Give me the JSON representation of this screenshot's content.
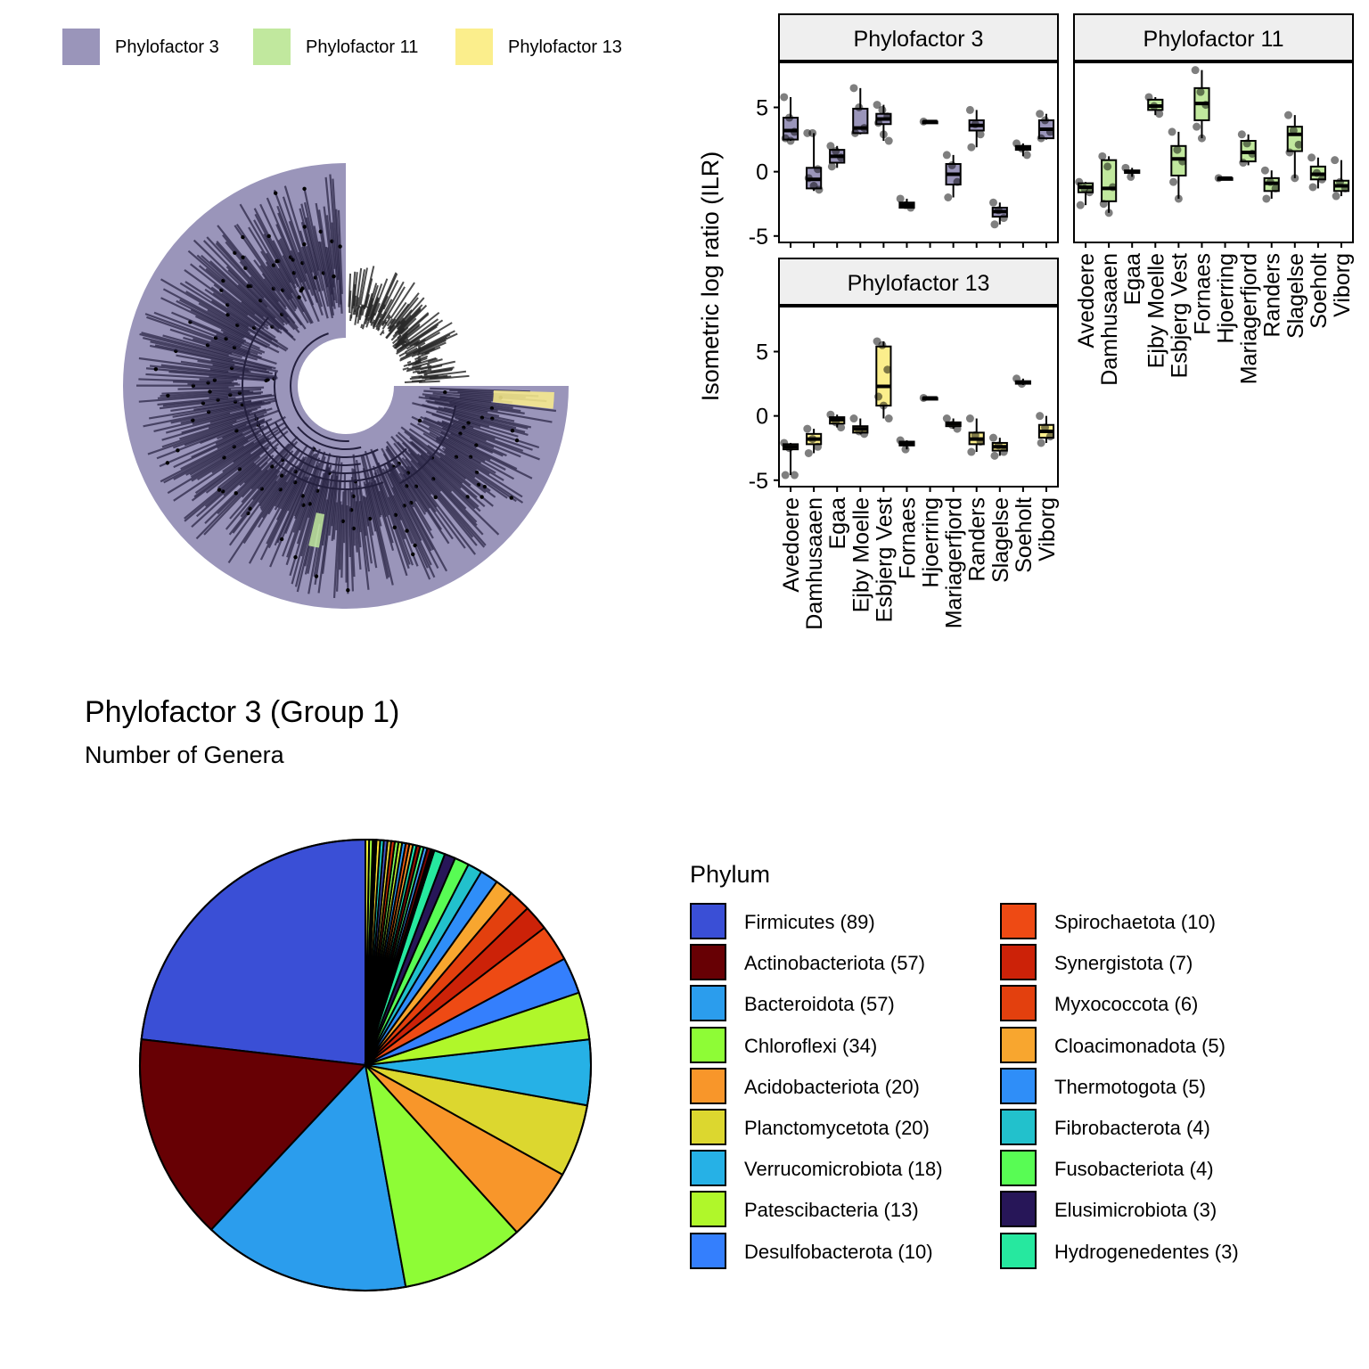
{
  "tree_legend": {
    "items": [
      {
        "label": "Phylofactor 3",
        "color": "#9a95ba"
      },
      {
        "label": "Phylofactor 11",
        "color": "#c1e89e"
      },
      {
        "label": "Phylofactor 13",
        "color": "#fbee8c"
      }
    ]
  },
  "chart_data": [
    {
      "type": "box",
      "ylabel": "Isometric log ratio (ILR)",
      "ylim": [
        -5.5,
        8.5
      ],
      "yticks": [
        -5,
        0,
        5
      ],
      "categories": [
        "Avedoere",
        "Damhusaaen",
        "Egaa",
        "Ejby Moelle",
        "Esbjerg Vest",
        "Fornaes",
        "Hjoerring",
        "Mariagerfjord",
        "Randers",
        "Slagelse",
        "Soeholt",
        "Viborg"
      ],
      "panels": [
        {
          "title": "Phylofactor 3",
          "color": "#9a95ba",
          "boxes": [
            {
              "q1": 2.5,
              "median": 3.2,
              "q3": 4.2,
              "min": 2.4,
              "max": 5.8,
              "points": [
                5.8,
                4.2,
                3.1,
                2.6,
                2.4
              ]
            },
            {
              "q1": -1.3,
              "median": -0.6,
              "q3": 0.3,
              "min": -1.5,
              "max": 3.0,
              "points": [
                3.0,
                3.0,
                0.2,
                -0.5,
                -1.1,
                -1.4
              ]
            },
            {
              "q1": 0.7,
              "median": 1.2,
              "q3": 1.7,
              "min": 0.3,
              "max": 2.0,
              "points": [
                2.0,
                1.6,
                1.1,
                0.4
              ]
            },
            {
              "q1": 3.0,
              "median": 3.4,
              "q3": 4.9,
              "min": 2.9,
              "max": 6.5,
              "points": [
                6.5,
                5.0,
                3.4,
                3.0
              ]
            },
            {
              "q1": 3.7,
              "median": 4.1,
              "q3": 4.5,
              "min": 2.4,
              "max": 5.2,
              "points": [
                5.2,
                4.8,
                4.3,
                3.8,
                2.9,
                2.4
              ]
            },
            {
              "q1": -2.8,
              "median": -2.6,
              "q3": -2.4,
              "min": -2.8,
              "max": -2.1,
              "points": [
                -2.1,
                -2.6,
                -2.8
              ]
            },
            {
              "q1": 3.9,
              "median": 3.9,
              "q3": 3.9,
              "min": 3.9,
              "max": 3.9,
              "points": [
                3.9
              ]
            },
            {
              "q1": -1.0,
              "median": -0.2,
              "q3": 0.6,
              "min": -2.0,
              "max": 1.3,
              "points": [
                1.3,
                0.5,
                -0.8,
                -2.0
              ]
            },
            {
              "q1": 3.2,
              "median": 3.6,
              "q3": 4.0,
              "min": 1.9,
              "max": 4.8,
              "points": [
                4.8,
                3.7,
                2.9,
                1.9
              ]
            },
            {
              "q1": -3.5,
              "median": -3.1,
              "q3": -2.8,
              "min": -4.1,
              "max": -2.4,
              "points": [
                -2.4,
                -3.0,
                -3.6,
                -4.1
              ]
            },
            {
              "q1": 1.7,
              "median": 1.9,
              "q3": 2.0,
              "min": 1.2,
              "max": 2.2,
              "points": [
                2.2,
                1.8,
                1.3
              ]
            },
            {
              "q1": 2.6,
              "median": 3.3,
              "q3": 4.0,
              "min": 2.5,
              "max": 4.5,
              "points": [
                4.5,
                4.0,
                3.1,
                2.6
              ]
            }
          ]
        },
        {
          "title": "Phylofactor 11",
          "color": "#c1e89e",
          "boxes": [
            {
              "q1": -1.6,
              "median": -1.2,
              "q3": -0.9,
              "min": -2.6,
              "max": -0.8,
              "points": [
                -0.8,
                -1.3,
                -1.6,
                -2.6
              ]
            },
            {
              "q1": -2.3,
              "median": -1.3,
              "q3": 0.9,
              "min": -3.2,
              "max": 1.2,
              "points": [
                1.2,
                0.4,
                -1.2,
                -2.5,
                -3.2
              ]
            },
            {
              "q1": -0.1,
              "median": 0.0,
              "q3": 0.1,
              "min": -0.4,
              "max": 0.3,
              "points": [
                0.3,
                -0.4
              ]
            },
            {
              "q1": 4.8,
              "median": 5.1,
              "q3": 5.6,
              "min": 4.4,
              "max": 5.8,
              "points": [
                5.8,
                5.1,
                4.5
              ]
            },
            {
              "q1": -0.3,
              "median": 1.0,
              "q3": 2.0,
              "min": -2.1,
              "max": 3.1,
              "points": [
                3.1,
                1.7,
                0.8,
                -0.8,
                -2.1
              ]
            },
            {
              "q1": 4.0,
              "median": 5.3,
              "q3": 6.5,
              "min": 2.6,
              "max": 7.9,
              "points": [
                7.9,
                6.2,
                5.2,
                3.5,
                2.6
              ]
            },
            {
              "q1": -0.5,
              "median": -0.5,
              "q3": -0.5,
              "min": -0.5,
              "max": -0.5,
              "points": [
                -0.5
              ]
            },
            {
              "q1": 0.8,
              "median": 1.5,
              "q3": 2.4,
              "min": 0.5,
              "max": 2.9,
              "points": [
                2.9,
                2.2,
                1.4,
                0.7
              ]
            },
            {
              "q1": -1.5,
              "median": -0.9,
              "q3": -0.5,
              "min": -2.1,
              "max": 0.1,
              "points": [
                0.1,
                -0.8,
                -1.3,
                -2.1
              ]
            },
            {
              "q1": 1.6,
              "median": 2.9,
              "q3": 3.5,
              "min": -0.5,
              "max": 4.4,
              "points": [
                4.4,
                3.2,
                2.1,
                1.5,
                -0.5
              ]
            },
            {
              "q1": -0.6,
              "median": -0.2,
              "q3": 0.4,
              "min": -1.3,
              "max": 1.1,
              "points": [
                1.1,
                -0.1,
                -0.6,
                -1.2
              ]
            },
            {
              "q1": -1.5,
              "median": -1.1,
              "q3": -0.7,
              "min": -1.9,
              "max": 0.9,
              "points": [
                0.9,
                -0.8,
                -1.3,
                -1.9
              ]
            }
          ]
        },
        {
          "title": "Phylofactor 13",
          "color": "#fbee8c",
          "boxes": [
            {
              "q1": -2.6,
              "median": -2.4,
              "q3": -2.2,
              "min": -4.6,
              "max": -2.1,
              "points": [
                -2.1,
                -2.5,
                -4.6,
                -4.6
              ]
            },
            {
              "q1": -2.2,
              "median": -1.8,
              "q3": -1.4,
              "min": -2.9,
              "max": -1.0,
              "points": [
                -1.0,
                -1.8,
                -2.4,
                -2.9
              ]
            },
            {
              "q1": -0.6,
              "median": -0.3,
              "q3": -0.1,
              "min": -0.9,
              "max": 0.1,
              "points": [
                0.1,
                -0.5,
                -0.9
              ]
            },
            {
              "q1": -1.3,
              "median": -1.0,
              "q3": -0.8,
              "min": -1.4,
              "max": -0.2,
              "points": [
                -0.2,
                -1.2,
                -1.4
              ]
            },
            {
              "q1": 0.8,
              "median": 2.3,
              "q3": 5.4,
              "min": -0.2,
              "max": 5.8,
              "points": [
                5.8,
                5.5,
                3.6,
                1.5,
                0.8,
                -0.2
              ]
            },
            {
              "q1": -2.3,
              "median": -2.2,
              "q3": -2.0,
              "min": -2.6,
              "max": -1.9,
              "points": [
                -1.9,
                -2.6
              ]
            },
            {
              "q1": 1.4,
              "median": 1.4,
              "q3": 1.4,
              "min": 1.4,
              "max": 1.4,
              "points": [
                1.4
              ]
            },
            {
              "q1": -0.8,
              "median": -0.6,
              "q3": -0.5,
              "min": -1.0,
              "max": -0.2,
              "points": [
                -0.2,
                -0.7,
                -1.0
              ]
            },
            {
              "q1": -2.2,
              "median": -1.8,
              "q3": -1.3,
              "min": -2.8,
              "max": -0.2,
              "points": [
                -0.2,
                -1.5,
                -2.0,
                -2.8
              ]
            },
            {
              "q1": -2.7,
              "median": -2.4,
              "q3": -2.1,
              "min": -3.1,
              "max": -1.7,
              "points": [
                -1.7,
                -2.3,
                -2.8,
                -3.1
              ]
            },
            {
              "q1": 2.5,
              "median": 2.6,
              "q3": 2.7,
              "min": 2.4,
              "max": 2.9,
              "points": [
                2.9,
                2.5
              ]
            },
            {
              "q1": -1.7,
              "median": -1.2,
              "q3": -0.7,
              "min": -2.1,
              "max": 0.0,
              "points": [
                0.0,
                -0.9,
                -1.6,
                -2.1
              ]
            }
          ]
        }
      ]
    },
    {
      "type": "pie",
      "title": "Phylofactor 3 (Group 1)",
      "subtitle": "Number of Genera",
      "legend_title": "Phylum",
      "legend_position": "right",
      "slices": [
        {
          "label": "Firmicutes (89)",
          "name": "Firmicutes",
          "value": 89,
          "color": "#3a4fd6"
        },
        {
          "label": "Actinobacteriota (57)",
          "name": "Actinobacteriota",
          "value": 57,
          "color": "#670004"
        },
        {
          "label": "Bacteroidota (57)",
          "name": "Bacteroidota",
          "value": 57,
          "color": "#2b9ded"
        },
        {
          "label": "Chloroflexi (34)",
          "name": "Chloroflexi",
          "value": 34,
          "color": "#8efc36"
        },
        {
          "label": "Acidobacteriota (20)",
          "name": "Acidobacteriota",
          "value": 20,
          "color": "#f8962a"
        },
        {
          "label": "Planctomycetota (20)",
          "name": "Planctomycetota",
          "value": 20,
          "color": "#dcd72f"
        },
        {
          "label": "Verrucomicrobiota (18)",
          "name": "Verrucomicrobiota",
          "value": 18,
          "color": "#26b1e6"
        },
        {
          "label": "Patescibacteria (13)",
          "name": "Patescibacteria",
          "value": 13,
          "color": "#b0f72a"
        },
        {
          "label": "Desulfobacterota (10)",
          "name": "Desulfobacterota",
          "value": 10,
          "color": "#347ffd"
        },
        {
          "label": "Spirochaetota (10)",
          "name": "Spirochaetota",
          "value": 10,
          "color": "#ee4a14"
        },
        {
          "label": "Synergistota (7)",
          "name": "Synergistota",
          "value": 7,
          "color": "#cc2208"
        },
        {
          "label": "Myxococcota (6)",
          "name": "Myxococcota",
          "value": 6,
          "color": "#e3400e"
        },
        {
          "label": "Cloacimonadota (5)",
          "name": "Cloacimonadota",
          "value": 5,
          "color": "#f8a62f"
        },
        {
          "label": "Thermotogota (5)",
          "name": "Thermotogota",
          "value": 5,
          "color": "#2f8ef8"
        },
        {
          "label": "Fibrobacterota (4)",
          "name": "Fibrobacterota",
          "value": 4,
          "color": "#22c1cc"
        },
        {
          "label": "Fusobacteriota (4)",
          "name": "Fusobacteriota",
          "value": 4,
          "color": "#58fc54"
        },
        {
          "label": "Elusimicrobiota (3)",
          "name": "Elusimicrobiota",
          "value": 3,
          "color": "#271658"
        },
        {
          "label": "Hydrogenedentes (3)",
          "name": "Hydrogenedentes",
          "value": 3,
          "color": "#26e89f"
        }
      ],
      "minor_colors": [
        "#000000",
        "#7a0403",
        "#3e9bfe",
        "#46f884",
        "#a11201",
        "#1be5b5",
        "#fea331",
        "#f05b12",
        "#2b9ef9",
        "#c4f133",
        "#7dff56",
        "#d23105",
        "#e8d539",
        "#4454c4",
        "#18d6cb",
        "#ffe12f",
        "#000000",
        "#a0fc3c",
        "#f4f636"
      ]
    }
  ]
}
